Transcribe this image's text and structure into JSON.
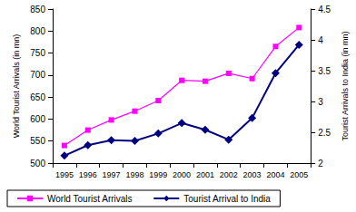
{
  "chart_data": {
    "type": "line",
    "categories": [
      "1995",
      "1996",
      "1997",
      "1998",
      "1999",
      "2000",
      "2001",
      "2002",
      "2003",
      "2004",
      "2005"
    ],
    "y_label": "World Tourist Arrivals (in mn)",
    "y2_label": "Tourist Arrivals to India (in mn)",
    "ylim": [
      500,
      850
    ],
    "yticks": [
      500,
      550,
      600,
      650,
      700,
      750,
      800,
      850
    ],
    "y2lim": [
      2,
      4.5
    ],
    "y2ticks": [
      2,
      2.5,
      3,
      3.5,
      4,
      4.5
    ],
    "grid": false,
    "legend": "bottom",
    "series": [
      {
        "name": "World Tourist Arrivals",
        "color": "#ff00ff",
        "marker": "square",
        "values": [
          540,
          575,
          598,
          618,
          642,
          688,
          686,
          704,
          692,
          765,
          808
        ]
      },
      {
        "name": "Tourist Arrival to India",
        "color": "#000080",
        "marker": "diamond",
        "axis": "y2",
        "values": [
          2.12,
          2.29,
          2.37,
          2.36,
          2.48,
          2.65,
          2.54,
          2.38,
          2.73,
          3.46,
          3.92
        ]
      }
    ]
  }
}
